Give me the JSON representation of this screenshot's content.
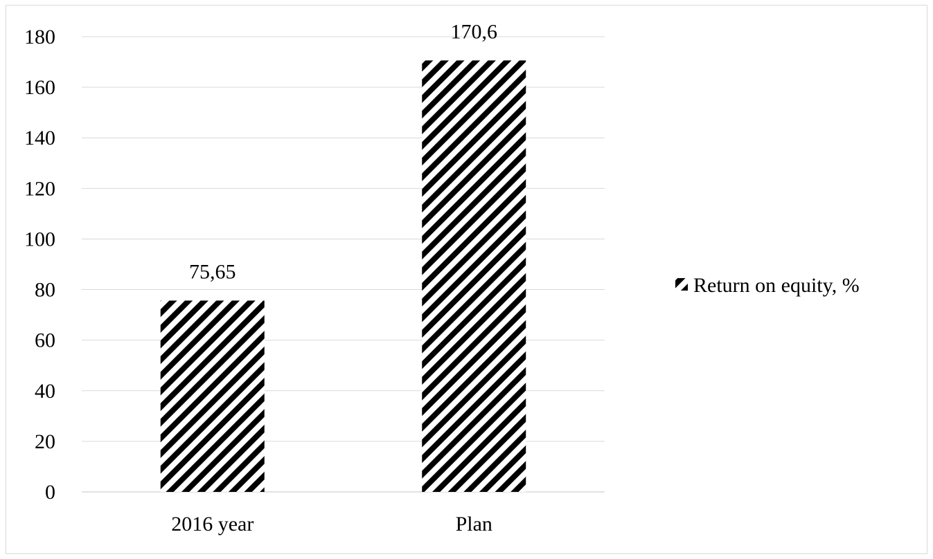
{
  "chart_data": {
    "type": "bar",
    "title": "",
    "xlabel": "",
    "ylabel": "",
    "categories": [
      "2016 year",
      "Plan"
    ],
    "series": [
      {
        "name": "Return on equity, %",
        "values": [
          75.65,
          170.6
        ],
        "value_labels": [
          "75,65",
          "170,6"
        ]
      }
    ],
    "ylim": [
      0,
      180
    ],
    "yticks": [
      0,
      20,
      40,
      60,
      80,
      100,
      120,
      140,
      160,
      180
    ],
    "grid": true,
    "legend_position": "right",
    "bar_fill": "diagonal-hatch",
    "colors": {
      "bar_stripe": "#000000",
      "bar_background": "#ffffff",
      "gridline": "#d9d9d9",
      "frame_border": "#d9d9d9",
      "text": "#000000"
    }
  }
}
